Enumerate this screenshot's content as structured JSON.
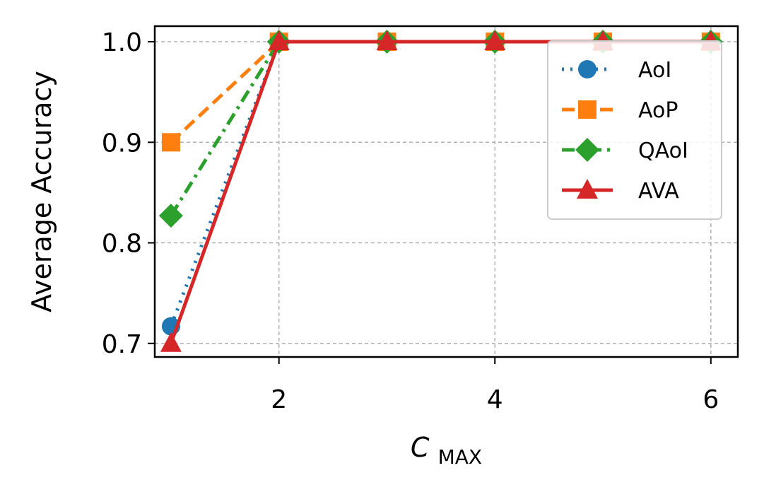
{
  "chart_data": {
    "type": "line",
    "xlabel_main": "C",
    "xlabel_sub": "MAX",
    "ylabel": "Average Accuracy",
    "x": [
      1,
      2,
      3,
      4,
      5,
      6
    ],
    "xlim": [
      0.85,
      6.25
    ],
    "ylim": [
      0.6865,
      1.0155
    ],
    "xticks": [
      2,
      4,
      6
    ],
    "yticks": [
      0.7,
      0.8,
      0.9,
      1.0
    ],
    "xtick_labels": [
      "2",
      "4",
      "6"
    ],
    "ytick_labels": [
      "0.7",
      "0.8",
      "0.9",
      "1.0"
    ],
    "grid": true,
    "legend_position": "top-right",
    "series": [
      {
        "name": "AoI",
        "values": [
          0.717,
          1.0,
          1.0,
          1.0,
          1.0,
          1.0
        ],
        "color": "#1f77b4",
        "marker": "circle",
        "linestyle": "dotted"
      },
      {
        "name": "AoP",
        "values": [
          0.9,
          1.0,
          1.0,
          1.0,
          1.0,
          1.0
        ],
        "color": "#ff7f0e",
        "marker": "square",
        "linestyle": "dashed"
      },
      {
        "name": "QAoI",
        "values": [
          0.827,
          1.0,
          1.0,
          1.0,
          1.0,
          1.0
        ],
        "color": "#2ca02c",
        "marker": "diamond",
        "linestyle": "dashdot"
      },
      {
        "name": "AVA",
        "values": [
          0.7,
          1.0,
          1.0,
          1.0,
          1.0,
          1.0
        ],
        "color": "#d62728",
        "marker": "triangle",
        "linestyle": "solid"
      }
    ]
  }
}
